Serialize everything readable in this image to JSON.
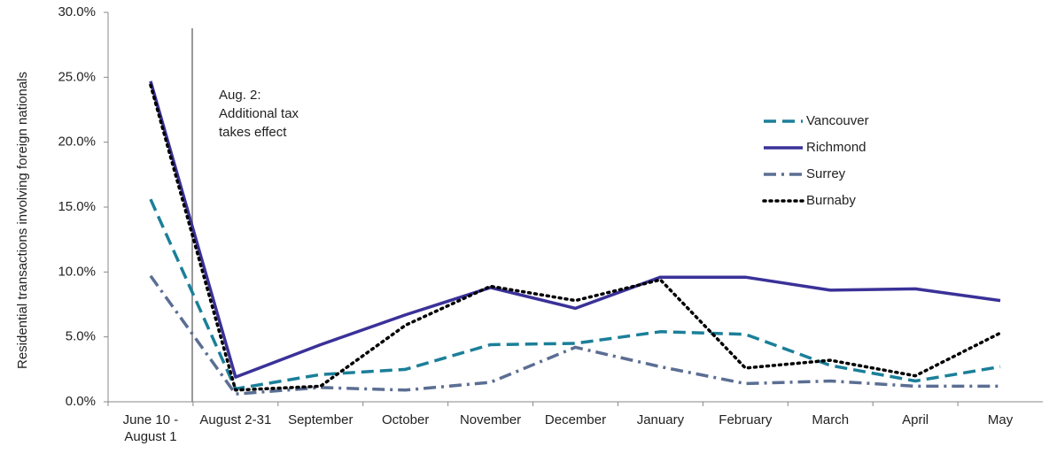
{
  "chart_data": {
    "type": "line",
    "y_label": "Residential transactions involving foreign nationals",
    "annotation": [
      "Aug. 2:",
      "Additional tax",
      "takes effect"
    ],
    "categories": [
      "June 10 - August 1",
      "August 2-31",
      "September",
      "October",
      "November",
      "December",
      "January",
      "February",
      "March",
      "April",
      "May"
    ],
    "series": [
      {
        "name": "Vancouver",
        "color": "#1b7f99",
        "dash": "dashed",
        "values": [
          15.6,
          1.0,
          2.1,
          2.5,
          4.4,
          4.5,
          5.4,
          5.2,
          2.8,
          1.6,
          2.7
        ]
      },
      {
        "name": "Richmond",
        "color": "#3a3198",
        "dash": "solid",
        "values": [
          24.7,
          1.9,
          4.4,
          6.7,
          8.8,
          7.2,
          9.6,
          9.6,
          8.6,
          8.7,
          7.8
        ]
      },
      {
        "name": "Surrey",
        "color": "#5b6e93",
        "dash": "dashdot",
        "values": [
          9.7,
          0.6,
          1.1,
          0.9,
          1.5,
          4.2,
          2.7,
          1.4,
          1.6,
          1.2,
          1.2
        ]
      },
      {
        "name": "Burnaby",
        "color": "#000000",
        "dash": "dotted",
        "values": [
          24.4,
          0.9,
          1.2,
          5.9,
          8.9,
          7.8,
          9.4,
          2.6,
          3.2,
          2.0,
          5.3
        ]
      }
    ],
    "ylim": [
      0,
      30
    ],
    "yticks": [
      {
        "value": 0,
        "label": "0.0%"
      },
      {
        "value": 5,
        "label": "5.0%"
      },
      {
        "value": 10,
        "label": "10.0%"
      },
      {
        "value": 15,
        "label": "15.0%"
      },
      {
        "value": 20,
        "label": "20.0%"
      },
      {
        "value": 25,
        "label": "25.0%"
      },
      {
        "value": 30,
        "label": "30.0%"
      }
    ],
    "legend": "right"
  }
}
